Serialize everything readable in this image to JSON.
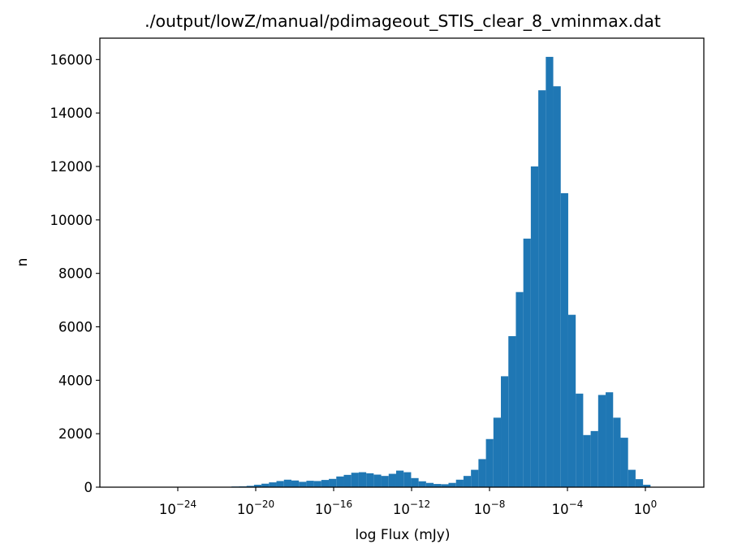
{
  "chart_data": {
    "type": "bar",
    "title": "./output/lowZ/manual/pdimageout_STIS_clear_8_vminmax.dat",
    "xlabel": "log Flux (mJy)",
    "ylabel": "n",
    "x_scale": "log",
    "xlim_log10": [
      -28,
      3
    ],
    "ylim": [
      0,
      16800
    ],
    "x_ticks": [
      {
        "exp": -24,
        "base": "10",
        "sup": "−24"
      },
      {
        "exp": -20,
        "base": "10",
        "sup": "−20"
      },
      {
        "exp": -16,
        "base": "10",
        "sup": "−16"
      },
      {
        "exp": -12,
        "base": "10",
        "sup": "−12"
      },
      {
        "exp": -8,
        "base": "10",
        "sup": "−8"
      },
      {
        "exp": -4,
        "base": "10",
        "sup": "−4"
      },
      {
        "exp": 0,
        "base": "10",
        "sup": "0"
      }
    ],
    "y_ticks": [
      {
        "value": 0,
        "label": "0"
      },
      {
        "value": 2000,
        "label": "2000"
      },
      {
        "value": 4000,
        "label": "4000"
      },
      {
        "value": 6000,
        "label": "6000"
      },
      {
        "value": 8000,
        "label": "8000"
      },
      {
        "value": 10000,
        "label": "10000"
      },
      {
        "value": 12000,
        "label": "12000"
      },
      {
        "value": 14000,
        "label": "14000"
      },
      {
        "value": 16000,
        "label": "16000"
      }
    ],
    "bar_color": "#1f77b4",
    "grid": false,
    "bins": {
      "log10_start": -27.0,
      "log10_width": 0.384,
      "counts": [
        0,
        0,
        0,
        0,
        0,
        0,
        5,
        0,
        5,
        0,
        5,
        5,
        0,
        5,
        5,
        25,
        30,
        50,
        90,
        130,
        180,
        230,
        280,
        250,
        200,
        240,
        230,
        270,
        310,
        400,
        460,
        540,
        560,
        520,
        470,
        420,
        500,
        620,
        560,
        340,
        220,
        160,
        120,
        110,
        160,
        280,
        420,
        650,
        1050,
        1800,
        2600,
        4150,
        5650,
        7300,
        9300,
        12000,
        14850,
        16100,
        15000,
        11000,
        6450,
        3500,
        1950,
        2100,
        3450,
        3550,
        2600,
        1850,
        650,
        300,
        90
      ]
    }
  }
}
